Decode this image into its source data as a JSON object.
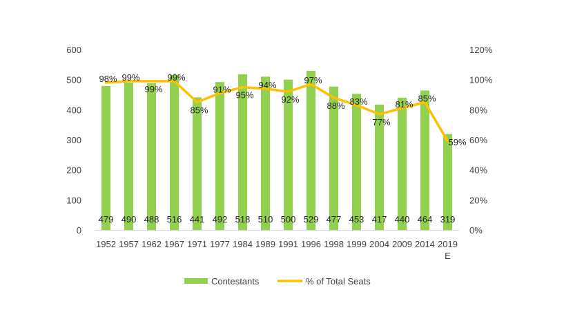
{
  "chart_data": {
    "type": "bar",
    "categories": [
      "1952",
      "1957",
      "1962",
      "1967",
      "1971",
      "1977",
      "1984",
      "1989",
      "1991",
      "1996",
      "1998",
      "1999",
      "2004",
      "2009",
      "2014",
      "2019\nE"
    ],
    "series": [
      {
        "name": "Contestants",
        "type": "bar",
        "axis": "left",
        "color": "#92d050",
        "values": [
          479,
          490,
          488,
          516,
          441,
          492,
          518,
          510,
          500,
          529,
          477,
          453,
          417,
          440,
          464,
          319
        ],
        "labels": [
          "479",
          "490",
          "488",
          "516",
          "441",
          "492",
          "518",
          "510",
          "500",
          "529",
          "477",
          "453",
          "417",
          "440",
          "464",
          "319"
        ]
      },
      {
        "name": "% of Total Seats",
        "type": "line",
        "axis": "right",
        "color": "#ffc000",
        "values": [
          98,
          99,
          99,
          99,
          85,
          91,
          95,
          94,
          92,
          97,
          88,
          83,
          77,
          81,
          85,
          59
        ],
        "labels": [
          "98%",
          "99%",
          "99%",
          "99%",
          "85%",
          "91%",
          "95%",
          "94%",
          "92%",
          "97%",
          "88%",
          "83%",
          "77%",
          "81%",
          "85%",
          "59%"
        ]
      }
    ],
    "y_left": {
      "lim": [
        0,
        600
      ],
      "ticks": [
        0,
        100,
        200,
        300,
        400,
        500,
        600
      ],
      "tick_labels": [
        "0",
        "100",
        "200",
        "300",
        "400",
        "500",
        "600"
      ]
    },
    "y_right": {
      "lim": [
        0,
        120
      ],
      "ticks": [
        0,
        20,
        40,
        60,
        80,
        100,
        120
      ],
      "tick_labels": [
        "0%",
        "20%",
        "40%",
        "60%",
        "80%",
        "100%",
        "120%"
      ]
    },
    "grid": false,
    "legend": {
      "placement": "bottom",
      "items": [
        {
          "label": "Contestants",
          "color": "#92d050",
          "kind": "bar"
        },
        {
          "label": "% of Total Seats",
          "color": "#ffc000",
          "kind": "line"
        }
      ]
    }
  }
}
